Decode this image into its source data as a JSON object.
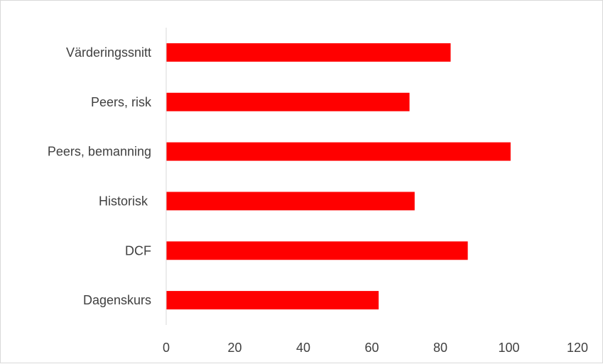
{
  "chart_data": {
    "type": "bar",
    "orientation": "horizontal",
    "title": "",
    "xlabel": "",
    "ylabel": "",
    "categories": [
      "Värderingssnitt",
      "Peers, risk",
      "Peers, bemanning",
      "Historisk ",
      "DCF",
      "Dagenskurs"
    ],
    "values": [
      83,
      71,
      100.5,
      72.5,
      88,
      62
    ],
    "xlim": [
      0,
      120
    ],
    "xticks": [
      "0",
      "20",
      "40",
      "60",
      "80",
      "100",
      "120"
    ],
    "grid": false,
    "legend": "none",
    "bar_color": "#ff0000",
    "axis_color": "#d9d9d9",
    "text_color": "#404040"
  }
}
